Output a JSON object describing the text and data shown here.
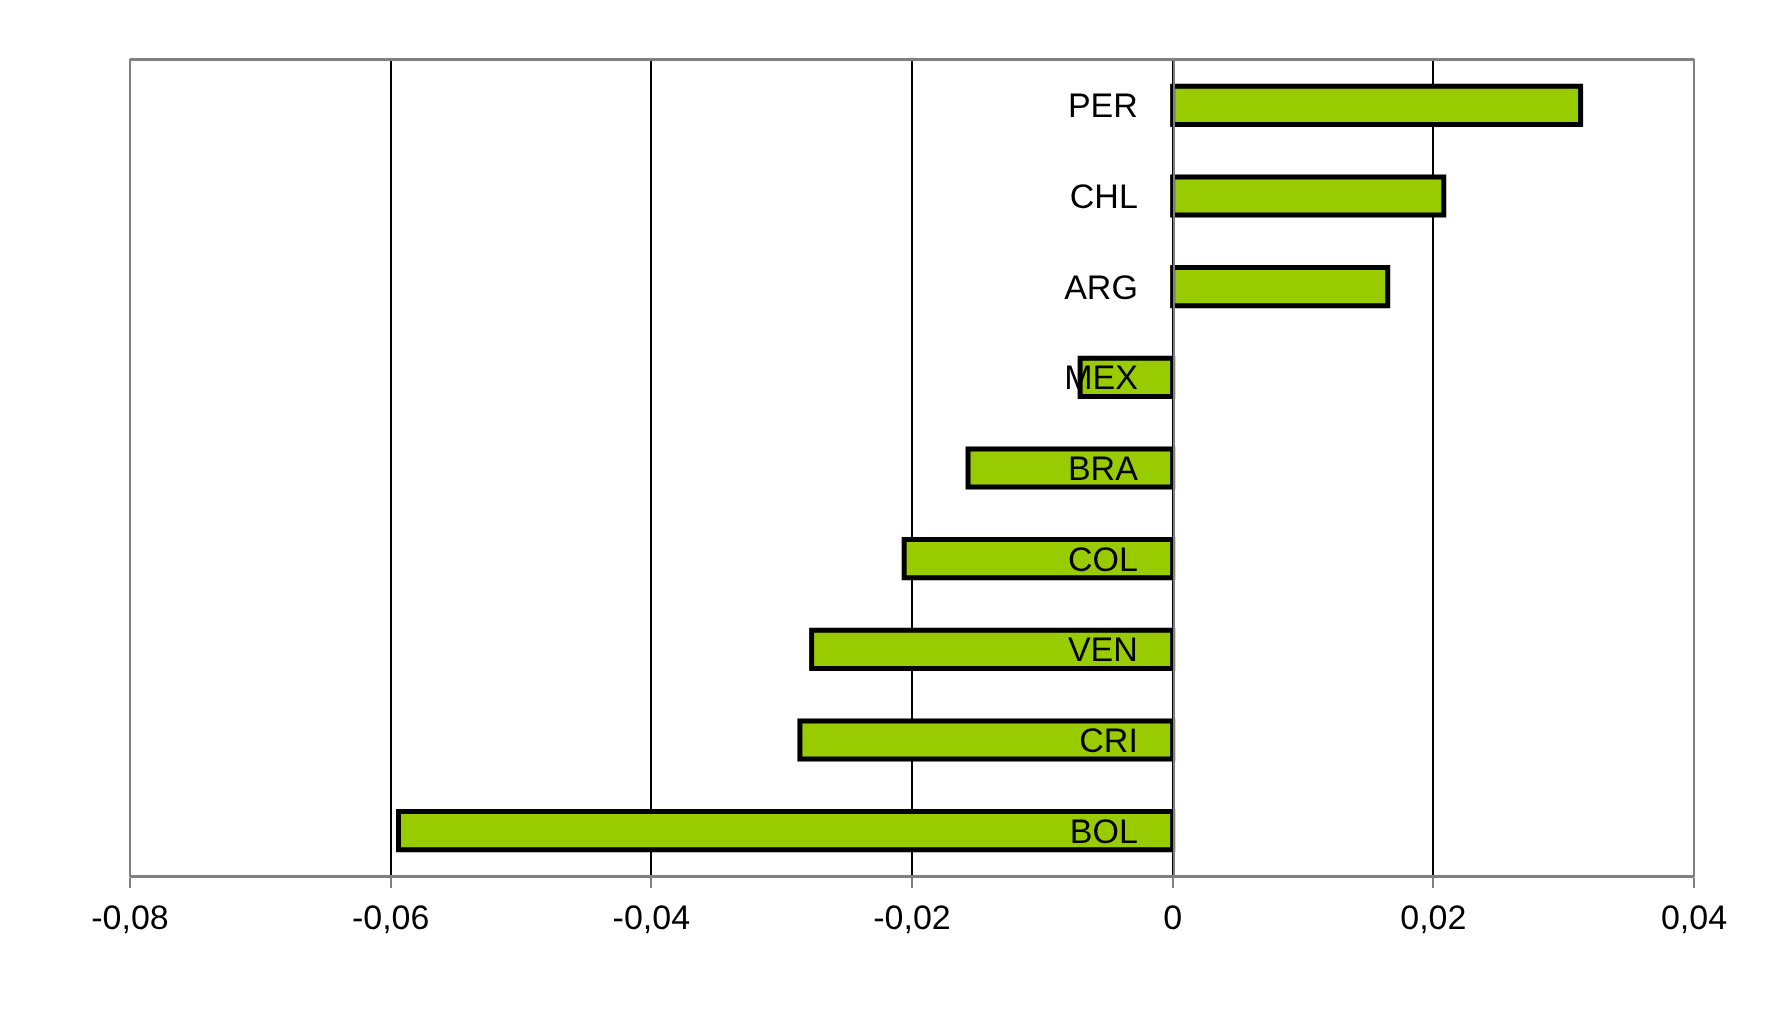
{
  "chart_data": {
    "type": "bar",
    "orientation": "horizontal",
    "categories": [
      "PER",
      "CHL",
      "ARG",
      "MEX",
      "BRA",
      "COL",
      "VEN",
      "CRI",
      "BOL"
    ],
    "values": [
      0.0313,
      0.0208,
      0.0165,
      -0.0071,
      -0.0157,
      -0.0206,
      -0.0277,
      -0.0286,
      -0.0594
    ],
    "color": "#99cc00",
    "xlim": [
      -0.08,
      0.04
    ],
    "xticks": [
      {
        "value": -0.08,
        "label": "-0,08"
      },
      {
        "value": -0.06,
        "label": "-0,06"
      },
      {
        "value": -0.04,
        "label": "-0,04"
      },
      {
        "value": -0.02,
        "label": "-0,02"
      },
      {
        "value": 0,
        "label": "0"
      },
      {
        "value": 0.02,
        "label": "0,02"
      },
      {
        "value": 0.04,
        "label": "0,04"
      }
    ],
    "grid": "x"
  }
}
